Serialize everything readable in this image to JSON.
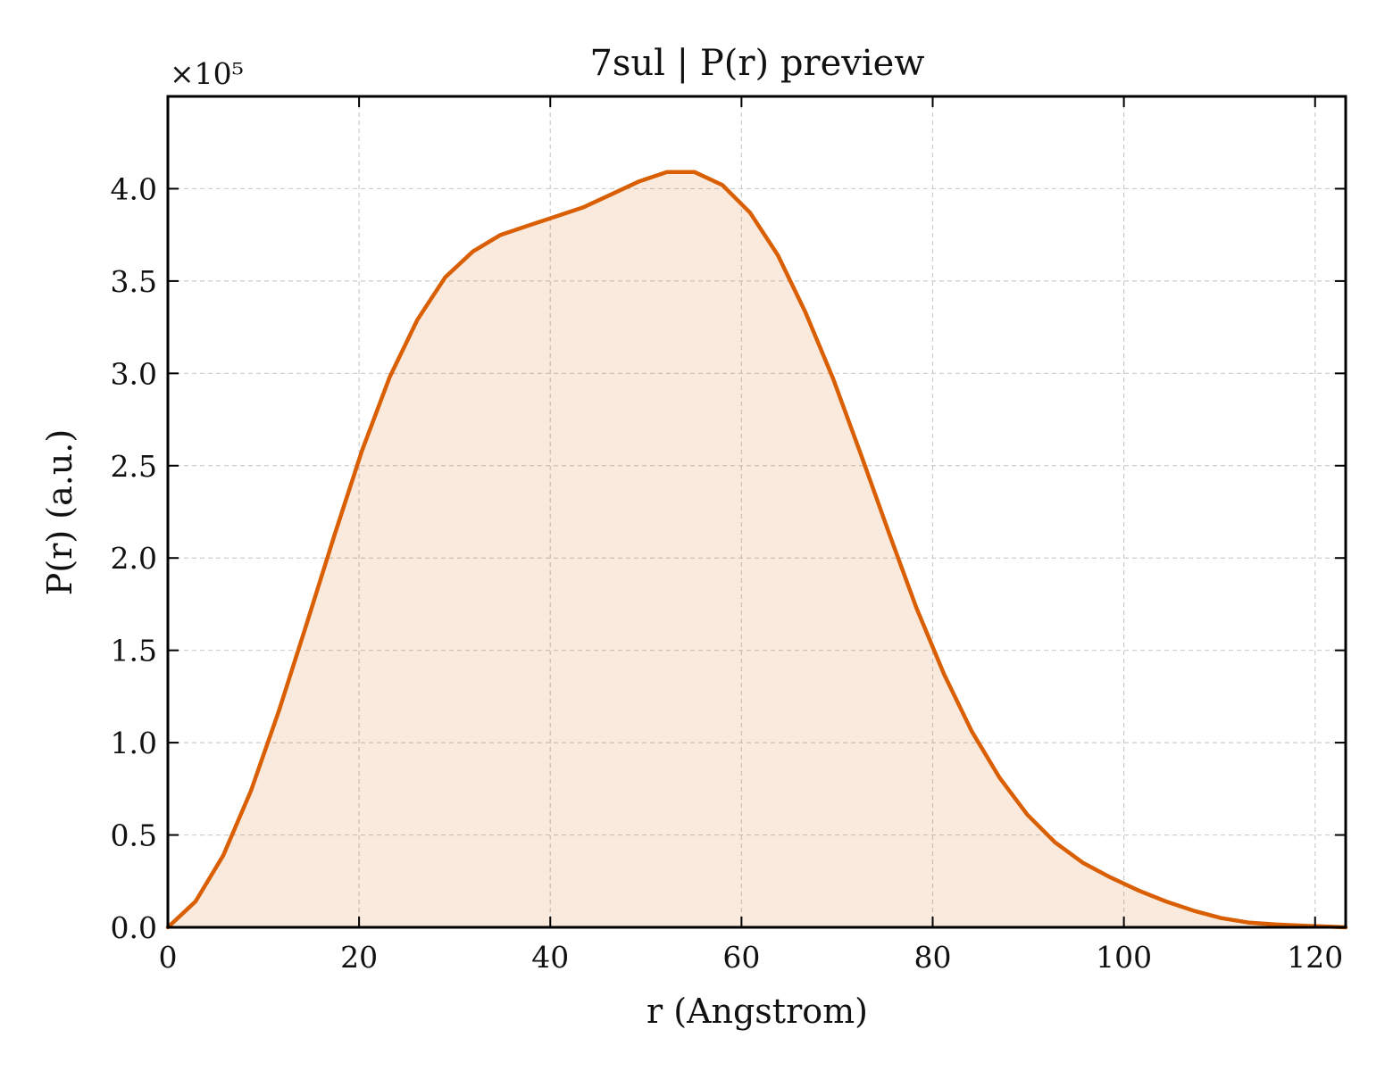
{
  "chart_data": {
    "type": "area",
    "title": "7sul | P(r) preview",
    "xlabel": "r (Angstrom)",
    "ylabel": "P(r) (a.u.)",
    "y_scale_label": "×10⁵",
    "y_scale_factor": 100000,
    "xlim": [
      0,
      123.2
    ],
    "ylim": [
      0,
      4.5
    ],
    "x_ticks": [
      0,
      20,
      40,
      60,
      80,
      100,
      120
    ],
    "x_tick_labels": [
      "0",
      "20",
      "40",
      "60",
      "80",
      "100",
      "120"
    ],
    "y_ticks": [
      0,
      0.5,
      1.0,
      1.5,
      2.0,
      2.5,
      3.0,
      3.5,
      4.0
    ],
    "y_tick_labels": [
      "0.0",
      "0.5",
      "1.0",
      "1.5",
      "2.0",
      "2.5",
      "3.0",
      "3.5",
      "4.0"
    ],
    "grid": true,
    "series": [
      {
        "color": "#d95f02",
        "fill_color": "#d95f02",
        "x": [
          0,
          2.9,
          5.8,
          8.7,
          11.6,
          14.5,
          17.4,
          20.3,
          23.2,
          26.1,
          29.0,
          31.9,
          34.8,
          37.7,
          40.6,
          43.5,
          46.4,
          49.3,
          52.2,
          55.1,
          58.0,
          60.9,
          63.8,
          66.7,
          69.6,
          72.5,
          75.4,
          78.3,
          81.2,
          84.1,
          87.0,
          89.9,
          92.8,
          95.7,
          98.6,
          101.5,
          104.4,
          107.3,
          110.2,
          113.1,
          116.0,
          118.9,
          121.8,
          123.2
        ],
        "y": [
          0.0,
          0.14,
          0.39,
          0.74,
          1.17,
          1.64,
          2.12,
          2.58,
          2.98,
          3.29,
          3.52,
          3.66,
          3.75,
          3.8,
          3.85,
          3.9,
          3.97,
          4.04,
          4.09,
          4.09,
          4.02,
          3.87,
          3.64,
          3.33,
          2.97,
          2.56,
          2.14,
          1.73,
          1.37,
          1.06,
          0.81,
          0.61,
          0.46,
          0.35,
          0.27,
          0.2,
          0.14,
          0.09,
          0.05,
          0.025,
          0.015,
          0.008,
          0.003,
          0.0
        ]
      }
    ]
  }
}
